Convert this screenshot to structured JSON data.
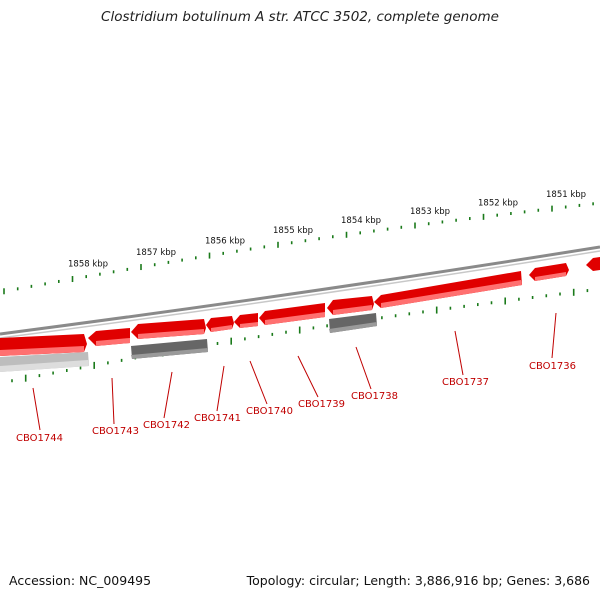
{
  "title": "Clostridium botulinum A str. ATCC 3502, complete genome",
  "footer": {
    "accession": "Accession: NC_009495",
    "summary": "Topology: circular; Length: 3,886,916 bp; Genes: 3,686"
  },
  "colors": {
    "backbone": "#8a8a8a",
    "gene_forward": "#e00000",
    "gene_forward_shade": "#ff7070",
    "gene_dark": "#666666",
    "gene_light": "#bdbdbd",
    "ruler": "#1a7a1a",
    "label": "#c00000"
  },
  "ruler_labels": [
    "1858 kbp",
    "1857 kbp",
    "1856 kbp",
    "1855 kbp",
    "1854 kbp",
    "1853 kbp",
    "1852 kbp",
    "1851 kbp"
  ],
  "genes": [
    {
      "name": "CBO1744",
      "row": "lower",
      "color": "light"
    },
    {
      "name": "CBO1743",
      "row": "upper",
      "color": "red"
    },
    {
      "name": "CBO1742",
      "row": "upper",
      "color": "red"
    },
    {
      "name": "CBO1741",
      "row": "upper",
      "color": "red"
    },
    {
      "name": "CBO1740",
      "row": "upper",
      "color": "red"
    },
    {
      "name": "CBO1739",
      "row": "upper",
      "color": "red"
    },
    {
      "name": "CBO1738",
      "row": "upper",
      "color": "red"
    },
    {
      "name": "CBO1737",
      "row": "upper",
      "color": "red"
    },
    {
      "name": "CBO1736",
      "row": "upper",
      "color": "red"
    }
  ]
}
